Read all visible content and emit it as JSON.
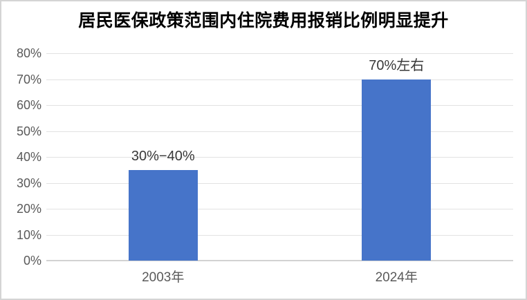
{
  "page": {
    "background": "#ffffff",
    "border_color": "#d4d4d4"
  },
  "chart_data": {
    "type": "bar",
    "title": "居民医保政策范围内住院费用报销比例明显提升",
    "categories": [
      "2003年",
      "2024年"
    ],
    "values": [
      35,
      70
    ],
    "bar_labels": [
      "30%−40%",
      "70%左右"
    ],
    "xlabel": "",
    "ylabel": "",
    "ylim": [
      0,
      80
    ],
    "yticks": [
      0,
      10,
      20,
      30,
      40,
      50,
      60,
      70,
      80
    ],
    "ytick_labels": [
      "0%",
      "10%",
      "20%",
      "30%",
      "40%",
      "50%",
      "60%",
      "70%",
      "80%"
    ],
    "grid": true,
    "legend": false,
    "colors": {
      "bar": "#4674c9",
      "gridline": "#e2e2e2",
      "baseline": "#d2d2d2",
      "tick_label": "#595959",
      "bar_label": "#383838",
      "title": "#000000"
    }
  }
}
